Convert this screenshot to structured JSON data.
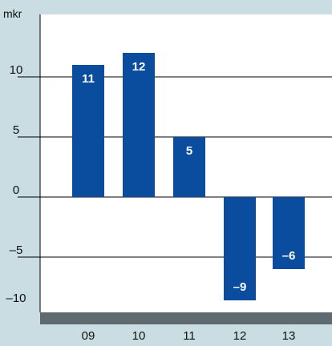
{
  "chart_data": {
    "type": "bar",
    "title": "",
    "xlabel": "",
    "ylabel": "mkr",
    "categories": [
      "09",
      "10",
      "11",
      "12",
      "13"
    ],
    "values": [
      11,
      12,
      5,
      -8.6,
      -6
    ],
    "data_labels": [
      "11",
      "12",
      "5",
      "–9",
      "–6"
    ],
    "ylim": [
      -10,
      15
    ],
    "yticks": [
      -10,
      -5,
      0,
      5,
      10
    ],
    "ytick_labels": [
      "–10",
      "–5",
      "0",
      "5",
      "10"
    ],
    "grid": true,
    "legend": "none",
    "colors": {
      "bar": "#0a4d9e",
      "background": "#c9dde3",
      "plot_area": "#ffffff",
      "baseline_band": "#5f6a70",
      "grid": "#000000"
    }
  }
}
